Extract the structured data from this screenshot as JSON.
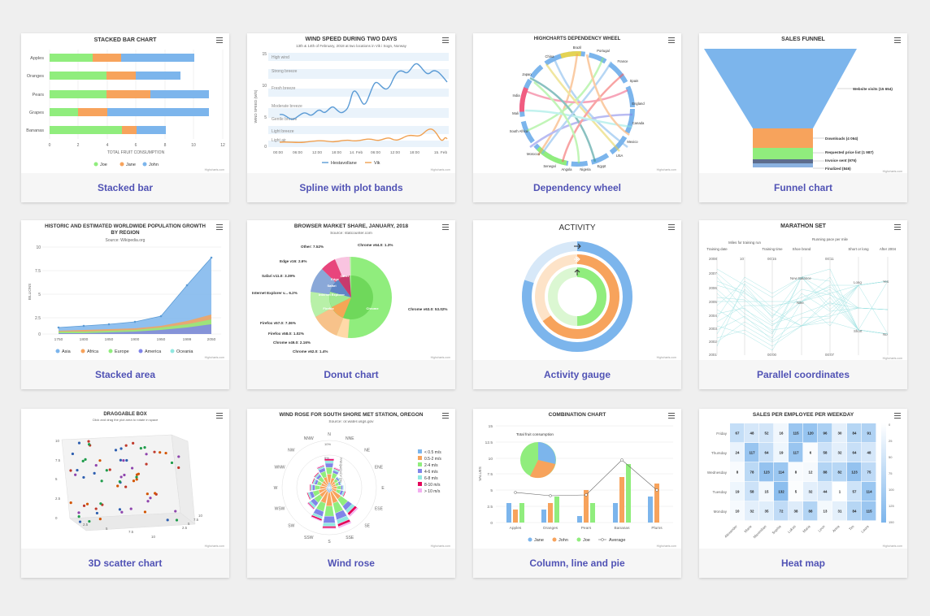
{
  "cards": [
    {
      "caption": "Stacked bar",
      "chart": {
        "title": "STACKED BAR CHART",
        "categories": [
          "Apples",
          "Oranges",
          "Pears",
          "Grapes",
          "Bananas"
        ],
        "xlabel": "TOTAL FRUIT CONSUMPTION",
        "ticks": [
          "0",
          "2",
          "4",
          "6",
          "8",
          "10",
          "12"
        ],
        "credit": "Highcharts.com"
      }
    },
    {
      "caption": "Spline with plot bands",
      "chart": {
        "title": "WIND SPEED DURING TWO DAYS",
        "subtitle": "13th & 14th of February, 2018 at two locations in Vik i Sogn, Norway",
        "ylabel": "WIND SPEED (M/S)",
        "bands": [
          "High wind",
          "Strong breeze",
          "Fresh breeze",
          "Moderate breeze",
          "Gentle breeze",
          "Light breeze",
          "Light air"
        ],
        "yticks": [
          "15",
          "10",
          "5",
          "0"
        ],
        "xticks": [
          "00:00",
          "06:00",
          "12:00",
          "18:00",
          "14. Feb",
          "06:00",
          "12:00",
          "18:00",
          "15. Feb"
        ],
        "legend": [
          "Hestavollane",
          "Vik"
        ],
        "credit": "Highcharts.com"
      }
    },
    {
      "caption": "Dependency wheel",
      "chart": {
        "title": "HIGHCHARTS DEPENDENCY WHEEL",
        "nodes": [
          "Brazil",
          "Portugal",
          "France",
          "Spain",
          "England",
          "Canada",
          "Mexico",
          "USA",
          "Egypt",
          "Nigeria",
          "Angola",
          "Senegal",
          "Morocco",
          "South Africa",
          "Mali",
          "India",
          "Japan",
          "China"
        ],
        "credit": "Highcharts.com"
      }
    },
    {
      "caption": "Funnel chart",
      "chart": {
        "title": "SALES FUNNEL",
        "labels": [
          "Website visits (15 654)",
          "Downloads (4 064)",
          "Requested price list (1 987)",
          "Invoice sent (976)",
          "Finalized (846)"
        ],
        "credit": "Highcharts.com"
      }
    },
    {
      "caption": "Stacked area",
      "chart": {
        "title": "HISTORIC AND ESTIMATED WORLDWIDE POPULATION GROWTH",
        "title2": "BY REGION",
        "subtitle": "Source: Wikipedia.org",
        "ylabel": "BILLIONS",
        "yticks": [
          "10",
          "7.5",
          "5",
          "2.5",
          "0"
        ],
        "xticks": [
          "1750",
          "1800",
          "1850",
          "1900",
          "1950",
          "1999",
          "2050"
        ],
        "legend": [
          "Asia",
          "Africa",
          "Europe",
          "America",
          "Oceania"
        ],
        "credit": "Highcharts.com"
      }
    },
    {
      "caption": "Donut chart",
      "chart": {
        "title": "BROWSER MARKET SHARE, JANUARY, 2018",
        "subtitle": "Source: statcounter.com",
        "labels": [
          "Other: 7.52%",
          "Chrome v64.0: 1.3%",
          "Edge v16: 2.6%",
          "Safari v11.0: 3.39%",
          "Internet Explorer v... 6.2%",
          "Chrome v63.0: 53.02%",
          "Firefox v57.0: 7.36%",
          "Firefox v58.0: 1.02%",
          "Chrome v49.0: 2.16%",
          "Chrome v62.0: 1.4%"
        ],
        "inner": [
          "Chrome",
          "Firefox",
          "Internet Explorer",
          "Safari",
          "Edge",
          "Opera",
          "Other"
        ],
        "credit": "Highcharts.com"
      }
    },
    {
      "caption": "Activity gauge",
      "chart": {
        "title": "ACTIVITY",
        "credit": "Highcharts.com"
      }
    },
    {
      "caption": "Parallel coordinates",
      "chart": {
        "title": "MARATHON SET",
        "axes": [
          "Training date",
          "Miles for training run",
          "Training time",
          "Shoe brand",
          "Running pace per mile",
          "Short or long",
          "After 2004"
        ],
        "dates": [
          "2008",
          "2007",
          "2006",
          "2005",
          "2004",
          "2003",
          "2002",
          "2001"
        ],
        "miles": [
          "10",
          "7.5",
          "5",
          "2.5",
          "0"
        ],
        "times": [
          "00:15",
          "00:10",
          "00:05",
          "00:00"
        ],
        "shoes": [
          "ASICS",
          "New Balance",
          "Nike",
          "Adidas"
        ],
        "paces": [
          "00:11",
          "00:10",
          "00:09",
          "00:08",
          "00:07"
        ],
        "short_long": [
          "Long",
          "Short"
        ],
        "after": [
          "Yes",
          "No"
        ],
        "credit": "Highcharts.com"
      }
    },
    {
      "caption": "3D scatter chart",
      "chart": {
        "title": "DRAGGABLE BOX",
        "subtitle": "Click and drag the plot area to rotate in space",
        "yticks": [
          "10",
          "7.5",
          "5",
          "2.5",
          "0"
        ],
        "xticks": [
          "2.5",
          "5",
          "7.5",
          "10"
        ],
        "zticks": [
          "10",
          "7.5",
          "5",
          "2.5"
        ],
        "credit": "Highcharts.com"
      }
    },
    {
      "caption": "Wind rose",
      "chart": {
        "title": "WIND ROSE FOR SOUTH SHORE MET STATION, OREGON",
        "subtitle": "Source: or.water.usgs.gov",
        "directions": [
          "N",
          "NNE",
          "NE",
          "ENE",
          "E",
          "ESE",
          "SE",
          "SSE",
          "S",
          "SSW",
          "SW",
          "WSW",
          "W",
          "WNW",
          "NW",
          "NNW"
        ],
        "legend": [
          "< 0.5 m/s",
          "0.5-2 m/s",
          "2-4 m/s",
          "4-6 m/s",
          "6-8 m/s",
          "8-10 m/s",
          "> 10 m/s"
        ],
        "rings": [
          "10%",
          "5%"
        ],
        "axis_label": "FREQUENCY (%)",
        "credit": "Highcharts.com"
      }
    },
    {
      "caption": "Column, line and pie",
      "chart": {
        "title": "COMBINATION CHART",
        "pie_label": "Total fruit consumption",
        "ylabel": "VALUES",
        "yticks": [
          "15",
          "12.5",
          "10",
          "7.5",
          "5",
          "2.5",
          "0"
        ],
        "categories": [
          "Apples",
          "Oranges",
          "Pears",
          "Bananas",
          "Plums"
        ],
        "legend": [
          "Jane",
          "John",
          "Joe",
          "Average"
        ],
        "credit": "Highcharts.com"
      }
    },
    {
      "caption": "Heat map",
      "chart": {
        "title": "SALES PER EMPLOYEE PER WEEKDAY",
        "days": [
          "Friday",
          "Thursday",
          "Wednesday",
          "Tuesday",
          "Monday"
        ],
        "employees": [
          "Alexander",
          "Marie",
          "Maximilian",
          "Sophia",
          "Lukas",
          "Maria",
          "Leon",
          "Anna",
          "Tim",
          "Laura"
        ],
        "rows": [
          [
            "67",
            "48",
            "52",
            "16",
            "115",
            "120",
            "96",
            "30",
            "84",
            "91"
          ],
          [
            "24",
            "117",
            "64",
            "19",
            "117",
            "6",
            "58",
            "32",
            "64",
            "48"
          ],
          [
            "8",
            "78",
            "123",
            "114",
            "8",
            "12",
            "88",
            "82",
            "123",
            "75"
          ],
          [
            "19",
            "58",
            "15",
            "132",
            "5",
            "32",
            "44",
            "1",
            "57",
            "114"
          ],
          [
            "10",
            "32",
            "35",
            "72",
            "38",
            "88",
            "13",
            "31",
            "84",
            "115"
          ]
        ],
        "scale": [
          "0",
          "25",
          "50",
          "75",
          "100",
          "125",
          "150"
        ],
        "credit": "Highcharts.com"
      }
    }
  ]
}
